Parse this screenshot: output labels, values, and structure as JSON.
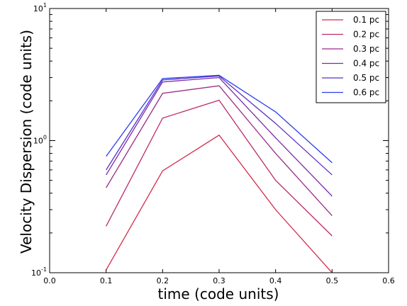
{
  "chart_data": {
    "type": "line",
    "xlabel": "time (code units)",
    "ylabel": "Velocity Dispersion (code units)",
    "x_scale": "linear",
    "y_scale": "log",
    "xlim": [
      0.0,
      0.6
    ],
    "ylim": [
      0.1,
      10
    ],
    "x_ticks": [
      0.0,
      0.1,
      0.2,
      0.3,
      0.4,
      0.5,
      0.6
    ],
    "x_tick_labels": [
      "0.0",
      "0.1",
      "0.2",
      "0.3",
      "0.4",
      "0.5",
      "0.6"
    ],
    "y_ticks": [
      0.1,
      1,
      10
    ],
    "y_tick_labels": [
      {
        "base": "10",
        "exp": "-1"
      },
      {
        "base": "10",
        "exp": "0"
      },
      {
        "base": "10",
        "exp": "1"
      }
    ],
    "grid": false,
    "legend_position": "top-right",
    "x": [
      0.1,
      0.2,
      0.3,
      0.4,
      0.5
    ],
    "series": [
      {
        "name": "0.1 pc",
        "color": "#d42a4c",
        "values": [
          0.105,
          0.59,
          1.1,
          0.3,
          0.1
        ]
      },
      {
        "name": "0.2 pc",
        "color": "#bb2a66",
        "values": [
          0.225,
          1.48,
          2.02,
          0.5,
          0.19
        ]
      },
      {
        "name": "0.3 pc",
        "color": "#9b2a86",
        "values": [
          0.44,
          2.28,
          2.6,
          0.8,
          0.27
        ]
      },
      {
        "name": "0.4 pc",
        "color": "#7a2aa8",
        "values": [
          0.55,
          2.78,
          3.0,
          1.05,
          0.38
        ]
      },
      {
        "name": "0.5 pc",
        "color": "#5a30c8",
        "values": [
          0.6,
          2.88,
          3.08,
          1.35,
          0.55
        ]
      },
      {
        "name": "0.6 pc",
        "color": "#2a3cf0",
        "values": [
          0.76,
          2.95,
          3.12,
          1.65,
          0.68
        ]
      }
    ]
  }
}
